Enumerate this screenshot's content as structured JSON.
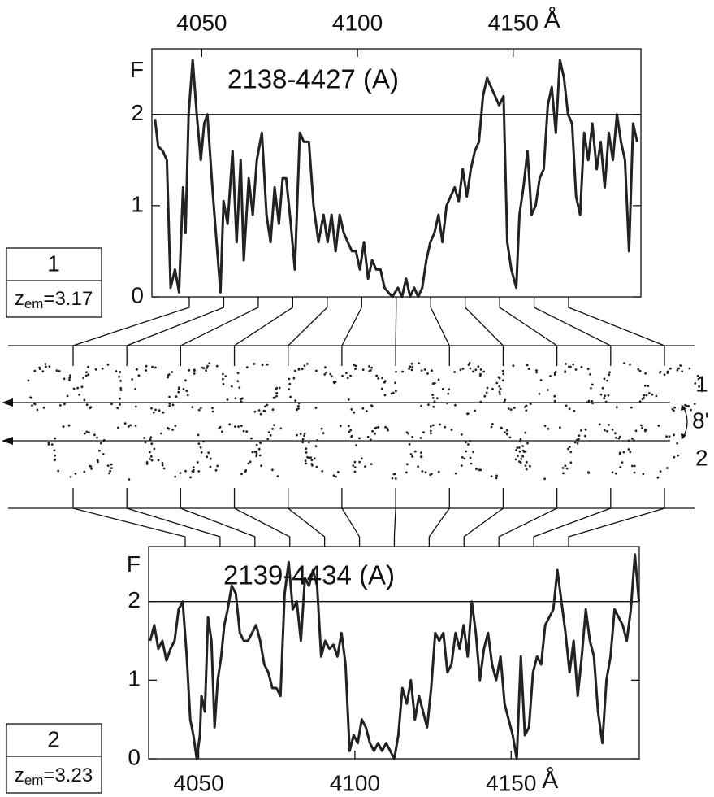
{
  "chart_data": [
    {
      "type": "line",
      "title": "2138-4427 (A)",
      "xaxis_position": "top",
      "color": "#222222",
      "xlabel": "Å",
      "ylabel": "F",
      "hline": 2,
      "xlim": [
        4034,
        4191
      ],
      "ylim": [
        0,
        2.72
      ],
      "xticks": [
        4050,
        4100,
        4150
      ],
      "yticks": [
        0,
        1,
        2
      ],
      "x": [
        4035,
        4036,
        4037.5,
        4038.8,
        4040,
        4041.4,
        4042.7,
        4044,
        4044.8,
        4045.8,
        4047.1,
        4048.4,
        4049.7,
        4050.8,
        4051.8,
        4053.4,
        4056,
        4057,
        4058.3,
        4059.9,
        4061.2,
        4062.5,
        4063.5,
        4065.1,
        4066.4,
        4067.7,
        4069.3,
        4070.8,
        4072.1,
        4073.4,
        4074.8,
        4076,
        4077.1,
        4078.6,
        4079.9,
        4081.5,
        4082.8,
        4084.4,
        4085.9,
        4087.5,
        4089.1,
        4090.4,
        4091.7,
        4093,
        4094.3,
        4095.6,
        4096.9,
        4098.2,
        4099.5,
        4100.8,
        4102.1,
        4103.4,
        4104.7,
        4106,
        4107.4,
        4108.7,
        4109.9,
        4111.2,
        4113,
        4114.3,
        4115.6,
        4116.9,
        4118.2,
        4119.5,
        4120.8,
        4122.1,
        4123.4,
        4124.7,
        4126,
        4127.3,
        4128.6,
        4129.9,
        4131.2,
        4132.5,
        4133.8,
        4135.1,
        4136.4,
        4137.7,
        4139,
        4140.3,
        4141.6,
        4142.9,
        4144.2,
        4145.5,
        4146.9,
        4148.1,
        4149.4,
        4151,
        4152,
        4153.3,
        4154.6,
        4155.9,
        4157.2,
        4158.5,
        4159.8,
        4161.1,
        4162.4,
        4163.7,
        4165,
        4166.3,
        4167.6,
        4168.9,
        4170.2,
        4171.5,
        4172.8,
        4174.1,
        4175.4,
        4176.8,
        4178.1,
        4179.4,
        4180.7,
        4182,
        4183.3,
        4184.6,
        4185.9,
        4187.2,
        4188.5,
        4189.8
      ],
      "values": [
        1.95,
        1.65,
        1.6,
        1.5,
        0.1,
        0.3,
        0.05,
        1.2,
        0.7,
        2.0,
        2.6,
        2.0,
        1.5,
        1.9,
        2.0,
        1.2,
        0.05,
        1.05,
        0.8,
        1.6,
        0.6,
        1.5,
        0.4,
        1.3,
        0.9,
        1.5,
        1.8,
        0.9,
        0.6,
        1.2,
        0.8,
        1.3,
        1.3,
        0.8,
        0.3,
        1.8,
        1.7,
        1.7,
        1.0,
        0.6,
        0.9,
        0.6,
        0.9,
        0.5,
        0.9,
        0.7,
        0.6,
        0.5,
        0.5,
        0.3,
        0.6,
        0.2,
        0.4,
        0.3,
        0.3,
        0.1,
        0.05,
        0,
        0.1,
        0,
        0.2,
        0,
        0.1,
        0,
        0.1,
        0.4,
        0.6,
        0.7,
        0.9,
        0.6,
        1.0,
        1.1,
        1.2,
        1.05,
        1.4,
        1.1,
        1.4,
        1.6,
        1.7,
        2.2,
        2.4,
        2.3,
        2.2,
        2.1,
        2.2,
        0.6,
        0.3,
        0.1,
        0.9,
        1.2,
        1.6,
        0.9,
        1.0,
        1.3,
        1.4,
        2.1,
        2.3,
        1.8,
        2.6,
        2.4,
        2.0,
        1.9,
        1.1,
        0.9,
        1.8,
        1.5,
        1.9,
        1.4,
        1.7,
        1.2,
        1.8,
        1.5,
        2.0,
        1.7,
        1.5,
        0.5,
        1.9,
        1.7
      ]
    },
    {
      "type": "line",
      "title": "2139-4434 (A)",
      "xaxis_position": "bottom",
      "color": "#222222",
      "xlabel": "Å",
      "ylabel": "F",
      "hline": 2,
      "xlim": [
        4034,
        4191
      ],
      "ylim": [
        0,
        2.7
      ],
      "xticks": [
        4050,
        4100,
        4150
      ],
      "yticks": [
        0,
        1,
        2
      ],
      "x": [
        4034.5,
        4035.8,
        4037.1,
        4038.4,
        4039.7,
        4041,
        4042.3,
        4043.6,
        4044.9,
        4046.2,
        4047.3,
        4048.3,
        4049.4,
        4050.4,
        4050.9,
        4052,
        4053,
        4054.1,
        4055.1,
        4056.1,
        4057.2,
        4058.2,
        4059.3,
        4060.6,
        4061.9,
        4063.2,
        4064.5,
        4065.8,
        4067.1,
        4068.4,
        4069.7,
        4071,
        4072.3,
        4073.6,
        4074.9,
        4076.2,
        4077.5,
        4078.8,
        4080.1,
        4081.4,
        4082.7,
        4084,
        4085.3,
        4086.6,
        4087.9,
        4089.2,
        4090.5,
        4091.8,
        4093.1,
        4094.4,
        4095.7,
        4097,
        4098.3,
        4099.6,
        4100.9,
        4102.2,
        4103.5,
        4104.8,
        4106.1,
        4107.4,
        4108.7,
        4110,
        4111.3,
        4112.6,
        4113.9,
        4115.2,
        4116.6,
        4117.9,
        4119.2,
        4120.5,
        4121.8,
        4123.1,
        4124.4,
        4125.7,
        4127,
        4128.3,
        4129.6,
        4130.9,
        4132.2,
        4133.5,
        4134.8,
        4136.1,
        4137.4,
        4138.7,
        4140,
        4141.3,
        4142.6,
        4143.9,
        4145.2,
        4146.6,
        4147.9,
        4149.2,
        4150.5,
        4151.8,
        4153.1,
        4154.4,
        4155.7,
        4157,
        4158.3,
        4159.6,
        4160.9,
        4162.2,
        4163.5,
        4164.8,
        4166.1,
        4167.4,
        4168.7,
        4170,
        4171.3,
        4172.6,
        4173.9,
        4175.2,
        4176.5,
        4177.8,
        4179.2,
        4180.5,
        4181.8,
        4183.1,
        4184.4,
        4185.7,
        4187,
        4188.3,
        4189.6,
        4190.9
      ],
      "values": [
        1.5,
        1.7,
        1.4,
        1.5,
        1.25,
        1.4,
        1.5,
        1.9,
        2.0,
        1.3,
        0.5,
        0.3,
        0,
        0.3,
        0.8,
        0.6,
        1.8,
        1.5,
        0.4,
        1.0,
        1.3,
        1.7,
        1.9,
        2.2,
        2.1,
        1.6,
        1.5,
        1.5,
        1.6,
        1.7,
        1.5,
        1.2,
        1.1,
        0.9,
        0.9,
        0.8,
        2.1,
        2.5,
        1.9,
        2.0,
        1.5,
        2.3,
        2.2,
        2.4,
        2.2,
        1.3,
        1.5,
        1.4,
        1.45,
        1.3,
        1.6,
        1.2,
        0.1,
        0.3,
        0.2,
        0.5,
        0.4,
        0.2,
        0.1,
        0.2,
        0.1,
        0.2,
        0.1,
        0,
        0.3,
        0.9,
        0.7,
        1.0,
        0.5,
        0.8,
        0.6,
        0.4,
        0.9,
        1.6,
        1.5,
        1.6,
        1.1,
        1.2,
        1.6,
        1.4,
        1.7,
        1.3,
        2.0,
        1.6,
        1.0,
        1.4,
        1.6,
        1.2,
        1.0,
        1.3,
        0.7,
        0.5,
        0.3,
        0,
        1.3,
        0.3,
        0.4,
        1.1,
        1.3,
        1.2,
        1.7,
        1.8,
        1.9,
        2.4,
        2.0,
        1.6,
        1.1,
        1.5,
        0.8,
        1.3,
        1.9,
        1.5,
        1.3,
        0.6,
        0.2,
        1.0,
        1.3,
        1.9,
        1.8,
        1.7,
        1.5,
        1.9,
        2.6,
        2.0
      ]
    }
  ],
  "panels": [
    {
      "number": "1",
      "z": "z",
      "z_sub": "em",
      "z_value": "=3.17"
    },
    {
      "number": "2",
      "z": "z",
      "z_sub": "em",
      "z_value": "=3.23"
    }
  ],
  "diagram": {
    "line_1": "1",
    "line_2": "2",
    "separation": "8'"
  }
}
